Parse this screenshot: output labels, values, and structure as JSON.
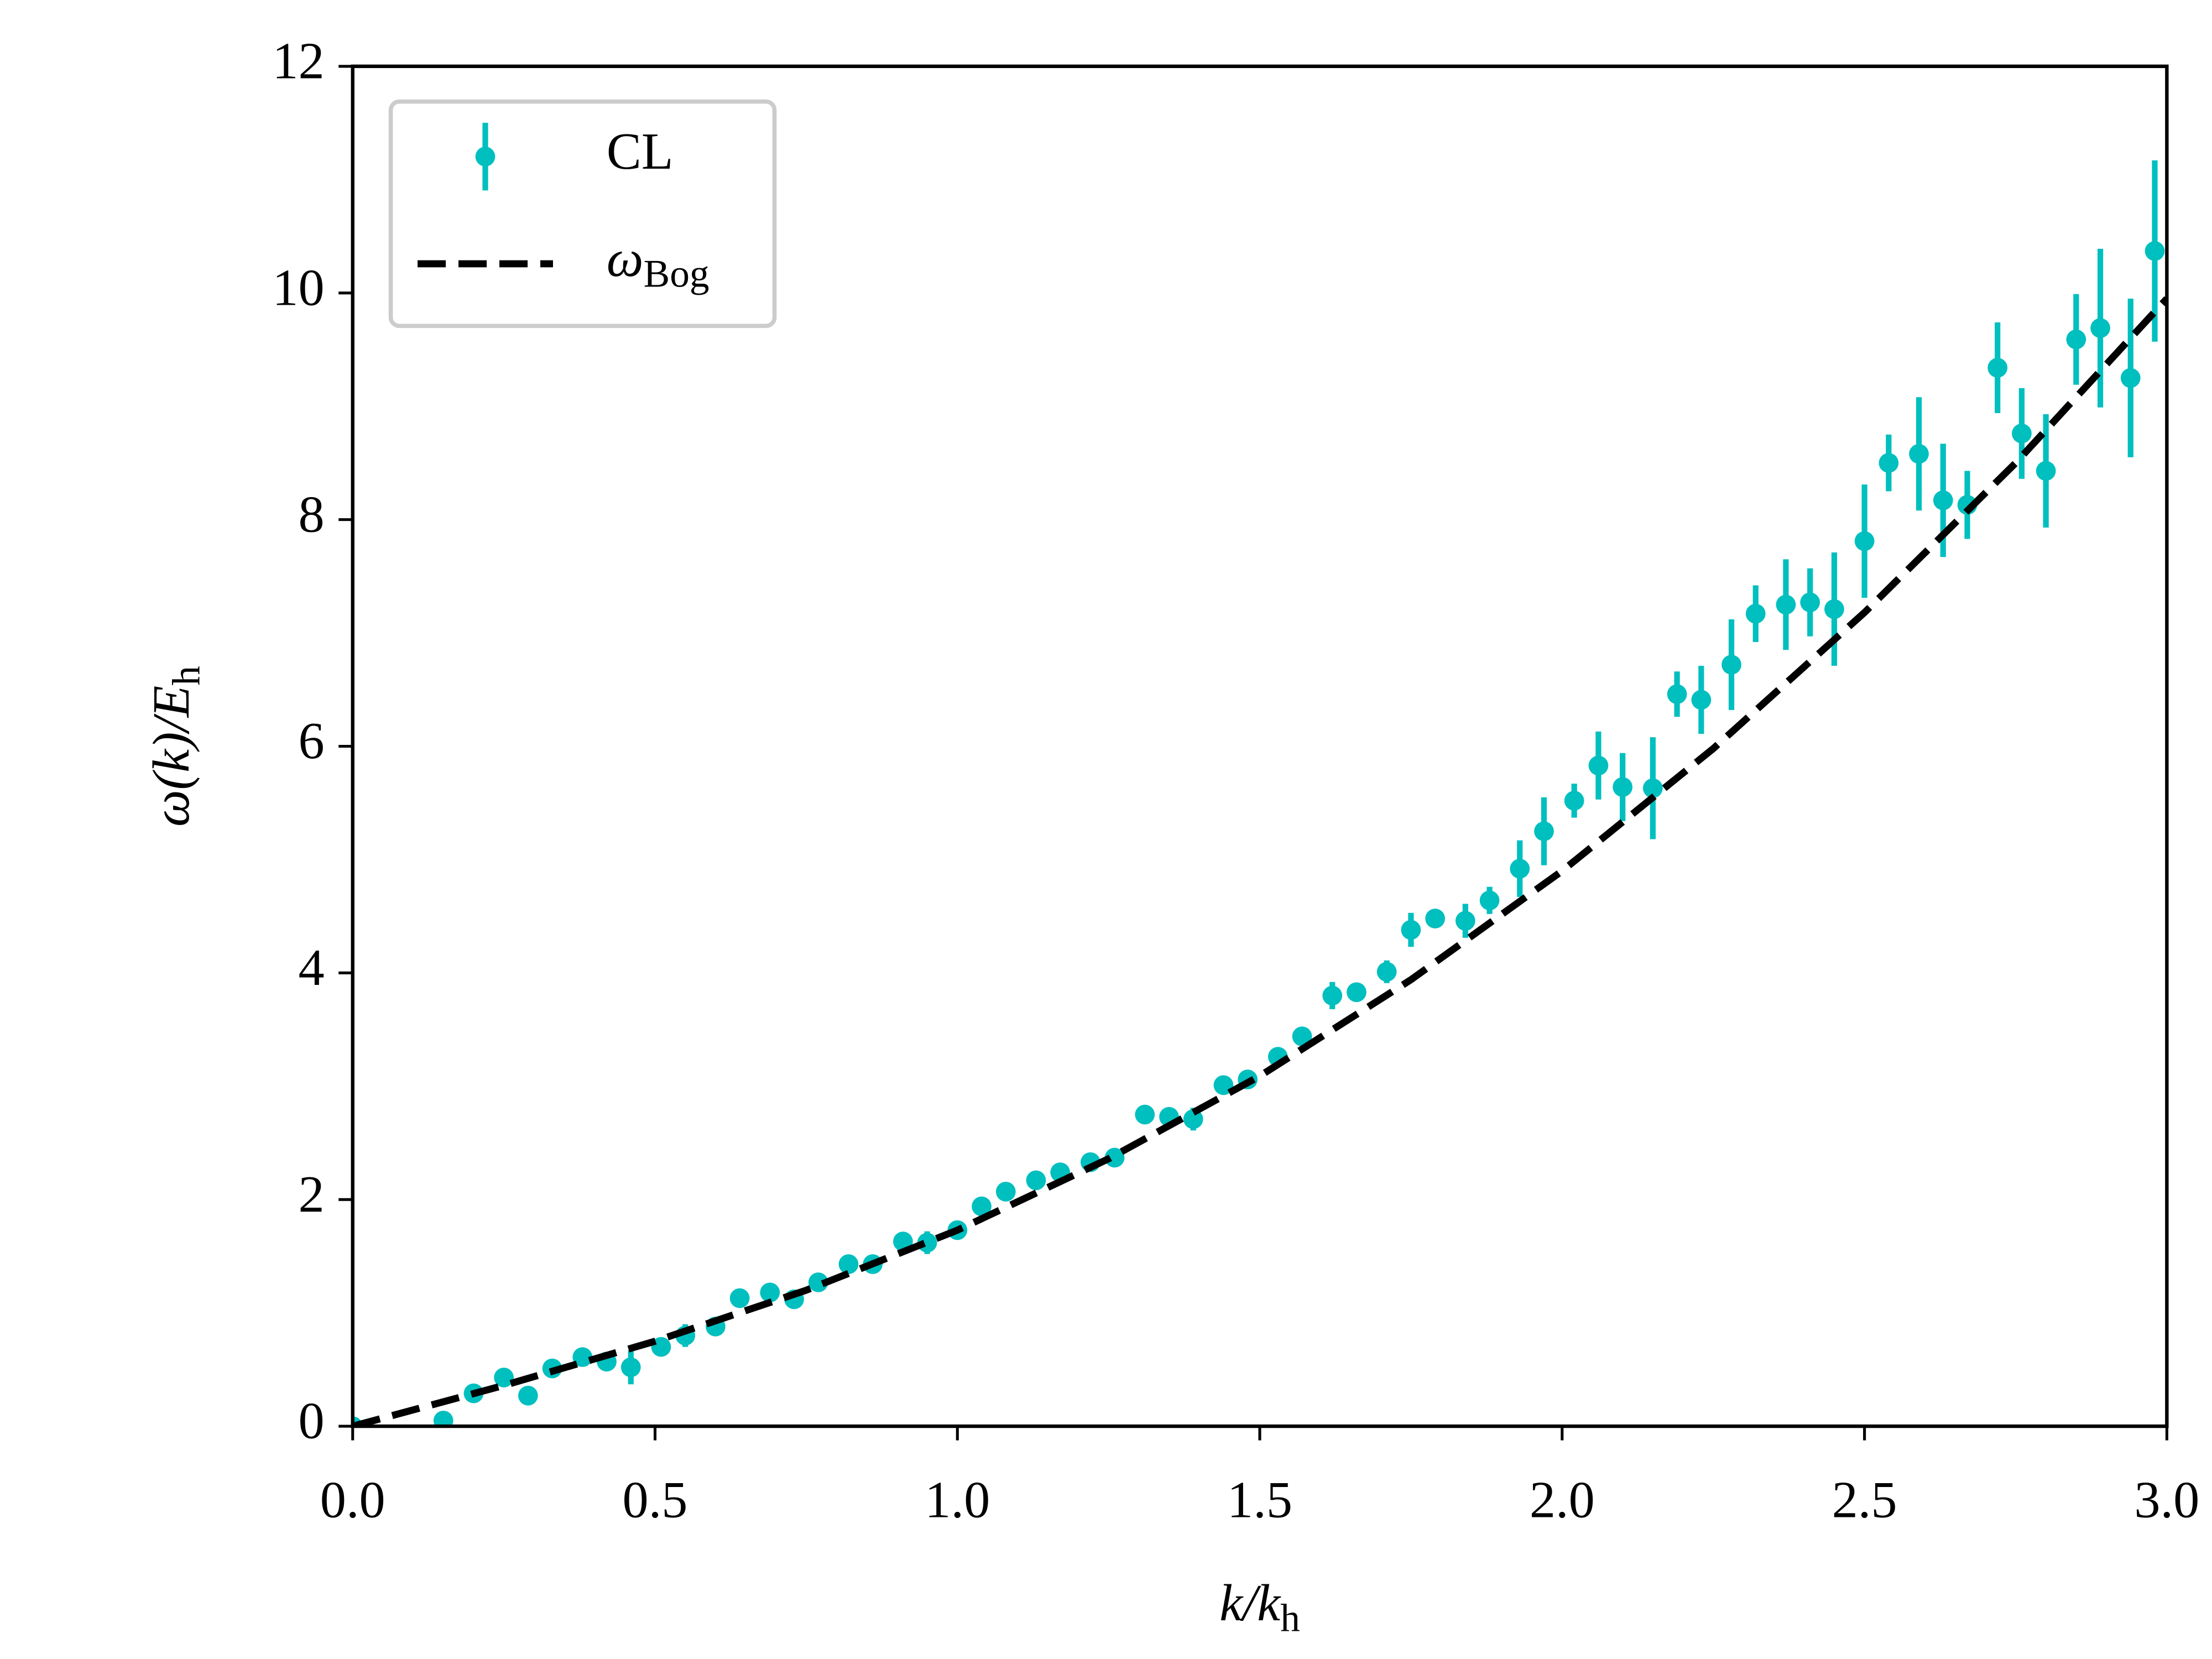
{
  "chart_data": {
    "type": "scatter",
    "x_label": {
      "text": "k/k",
      "sub": "h"
    },
    "y_label": {
      "text": "ω(k)/E",
      "sub": "h"
    },
    "xlim": [
      0,
      3
    ],
    "ylim": [
      0,
      12
    ],
    "xticks": [
      {
        "value": 0,
        "label": "0.0"
      },
      {
        "value": 0.5,
        "label": "0.5"
      },
      {
        "value": 1,
        "label": "1.0"
      },
      {
        "value": 1.5,
        "label": "1.5"
      },
      {
        "value": 2,
        "label": "2.0"
      },
      {
        "value": 2.5,
        "label": "2.5"
      },
      {
        "value": 3,
        "label": "3.0"
      }
    ],
    "yticks": [
      0,
      2,
      4,
      6,
      8,
      10,
      12
    ],
    "legend": "upper left",
    "series": [
      {
        "name": "CL",
        "type": "errorbar",
        "color": "#00bfbf",
        "x": [
          0.0,
          0.15,
          0.2,
          0.25,
          0.29,
          0.33,
          0.38,
          0.42,
          0.46,
          0.51,
          0.55,
          0.6,
          0.64,
          0.69,
          0.73,
          0.77,
          0.82,
          0.86,
          0.91,
          0.95,
          1.0,
          1.04,
          1.08,
          1.13,
          1.17,
          1.22,
          1.26,
          1.31,
          1.35,
          1.39,
          1.44,
          1.48,
          1.53,
          1.57,
          1.62,
          1.66,
          1.71,
          1.75,
          1.79,
          1.84,
          1.88,
          1.93,
          1.97,
          2.02,
          2.06,
          2.1,
          2.15,
          2.19,
          2.23,
          2.28,
          2.32,
          2.37,
          2.41,
          2.45,
          2.5,
          2.54,
          2.59,
          2.63,
          2.67,
          2.72,
          2.76,
          2.8,
          2.85,
          2.89,
          2.94,
          2.98
        ],
        "values": [
          0.0,
          0.05,
          0.29,
          0.43,
          0.27,
          0.51,
          0.61,
          0.57,
          0.52,
          0.7,
          0.8,
          0.88,
          1.13,
          1.18,
          1.12,
          1.27,
          1.43,
          1.43,
          1.63,
          1.62,
          1.73,
          1.94,
          2.07,
          2.17,
          2.24,
          2.33,
          2.37,
          2.75,
          2.73,
          2.71,
          3.01,
          3.06,
          3.26,
          3.44,
          3.8,
          3.83,
          4.01,
          4.38,
          4.48,
          4.46,
          4.64,
          4.92,
          5.25,
          5.52,
          5.83,
          5.64,
          5.63,
          6.46,
          6.41,
          6.72,
          7.17,
          7.25,
          7.27,
          7.21,
          7.81,
          8.5,
          8.58,
          8.17,
          8.13,
          9.34,
          8.76,
          8.43,
          9.59,
          9.69,
          9.25,
          10.37
        ],
        "errors": [
          0.03,
          0.03,
          0.05,
          0.05,
          0.05,
          0.05,
          0.05,
          0.05,
          0.15,
          0.08,
          0.1,
          0.05,
          0.05,
          0.05,
          0.05,
          0.05,
          0.05,
          0.05,
          0.05,
          0.1,
          0.05,
          0.05,
          0.05,
          0.05,
          0.05,
          0.05,
          0.05,
          0.05,
          0.05,
          0.1,
          0.05,
          0.05,
          0.05,
          0.05,
          0.12,
          0.08,
          0.1,
          0.15,
          0.05,
          0.15,
          0.12,
          0.25,
          0.3,
          0.15,
          0.3,
          0.3,
          0.45,
          0.2,
          0.3,
          0.4,
          0.25,
          0.4,
          0.3,
          0.5,
          0.5,
          0.25,
          0.5,
          0.5,
          0.3,
          0.4,
          0.4,
          0.5,
          0.4,
          0.7,
          0.7,
          0.8
        ]
      },
      {
        "name": "ω",
        "name_sub": "Bog",
        "type": "line",
        "color": "#000000",
        "dashed": true,
        "x": [
          0,
          0.25,
          0.5,
          0.75,
          1,
          1.25,
          1.5,
          1.75,
          2,
          2.25,
          2.5,
          2.75,
          3
        ],
        "values": [
          0,
          0.36,
          0.75,
          1.2,
          1.73,
          2.36,
          3.09,
          3.94,
          4.9,
          5.98,
          7.18,
          8.5,
          9.95
        ]
      }
    ]
  }
}
